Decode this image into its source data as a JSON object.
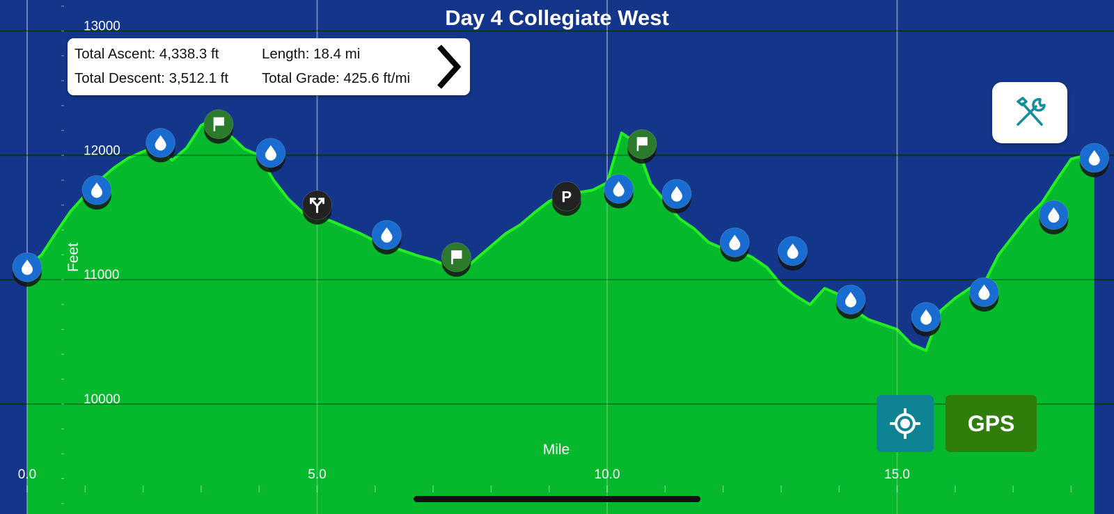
{
  "title": "Day 4 Collegiate West",
  "stats": {
    "total_ascent": "Total Ascent: 4,338.3 ft",
    "length": "Length: 18.4 mi",
    "total_descent": "Total Descent: 3,512.1 ft",
    "total_grade": "Total Grade: 425.6 ft/mi"
  },
  "buttons": {
    "gps_label": "GPS",
    "tools_icon": "hammer-wrench-icon",
    "locate_icon": "crosshair-icon",
    "details_icon": "chevron-right-icon"
  },
  "colors": {
    "background": "#13368a",
    "profile_fill": "#05b82c",
    "profile_line": "#22ee22",
    "water_marker": "#1a6dd0",
    "flag_marker": "#2c7a2c",
    "dark_marker": "#222222",
    "locate_button": "#0e8394",
    "gps_button": "#2f7e0b"
  },
  "chart_data": {
    "type": "area",
    "xlabel": "Mile",
    "ylabel": "Feet",
    "xlim": [
      0,
      18.4
    ],
    "ylim": [
      9000,
      13200
    ],
    "xticks": [
      0,
      5,
      10,
      15
    ],
    "xtick_labels": [
      "0.0",
      "5.0",
      "10.0",
      "15.0"
    ],
    "yticks": [
      10000,
      11000,
      12000,
      13000
    ],
    "ytick_labels": [
      "10000",
      "11000",
      "12000",
      "13000"
    ],
    "grid": true,
    "series": [
      {
        "x": [
          0,
          0.25,
          0.5,
          0.75,
          1.0,
          1.25,
          1.5,
          1.75,
          2.0,
          2.25,
          2.5,
          2.75,
          3.0,
          3.25,
          3.5,
          3.75,
          4.0,
          4.25,
          4.5,
          4.75,
          5.0,
          5.25,
          5.5,
          5.75,
          6.0,
          6.25,
          6.5,
          6.75,
          7.0,
          7.25,
          7.5,
          7.75,
          8.0,
          8.25,
          8.5,
          8.75,
          9.0,
          9.25,
          9.5,
          9.75,
          10.0,
          10.25,
          10.5,
          10.75,
          11.0,
          11.25,
          11.5,
          11.75,
          12.0,
          12.25,
          12.5,
          12.75,
          13.0,
          13.25,
          13.5,
          13.75,
          14.0,
          14.25,
          14.5,
          14.75,
          15.0,
          15.25,
          15.5,
          15.75,
          16.0,
          16.25,
          16.5,
          16.75,
          17.0,
          17.25,
          17.5,
          17.75,
          18.0,
          18.25,
          18.4
        ],
        "y": [
          11100,
          11200,
          11380,
          11550,
          11680,
          11800,
          11900,
          11980,
          12030,
          12070,
          11960,
          12060,
          12240,
          12310,
          12160,
          12050,
          12000,
          11800,
          11650,
          11540,
          11510,
          11470,
          11420,
          11370,
          11310,
          11270,
          11230,
          11190,
          11160,
          11110,
          11070,
          11170,
          11270,
          11370,
          11440,
          11540,
          11630,
          11680,
          11700,
          11720,
          11780,
          12180,
          12100,
          11770,
          11630,
          11490,
          11410,
          11300,
          11250,
          11230,
          11180,
          11100,
          10960,
          10870,
          10800,
          10930,
          10880,
          10760,
          10680,
          10640,
          10600,
          10480,
          10430,
          10750,
          10850,
          10930,
          10970,
          11200,
          11350,
          11500,
          11620,
          11800,
          11970,
          12000,
          12000
        ]
      }
    ],
    "waypoints": [
      {
        "type": "water",
        "x": 0.0,
        "y": 11100
      },
      {
        "type": "water",
        "x": 1.2,
        "y": 11720
      },
      {
        "type": "water",
        "x": 2.3,
        "y": 12100
      },
      {
        "type": "flag",
        "x": 3.3,
        "y": 12250
      },
      {
        "type": "water",
        "x": 4.2,
        "y": 12020
      },
      {
        "type": "junction",
        "x": 5.0,
        "y": 11600
      },
      {
        "type": "water",
        "x": 6.2,
        "y": 11360
      },
      {
        "type": "flag",
        "x": 7.4,
        "y": 11180
      },
      {
        "type": "parking",
        "x": 9.3,
        "y": 11670
      },
      {
        "type": "water",
        "x": 10.2,
        "y": 11730
      },
      {
        "type": "flag",
        "x": 10.6,
        "y": 12090
      },
      {
        "type": "water",
        "x": 11.2,
        "y": 11690
      },
      {
        "type": "water",
        "x": 12.2,
        "y": 11300
      },
      {
        "type": "water",
        "x": 13.2,
        "y": 11230
      },
      {
        "type": "water",
        "x": 14.2,
        "y": 10840
      },
      {
        "type": "water",
        "x": 15.5,
        "y": 10700
      },
      {
        "type": "water",
        "x": 16.5,
        "y": 10900
      },
      {
        "type": "water",
        "x": 17.7,
        "y": 11520
      },
      {
        "type": "water",
        "x": 18.4,
        "y": 11980
      }
    ]
  }
}
